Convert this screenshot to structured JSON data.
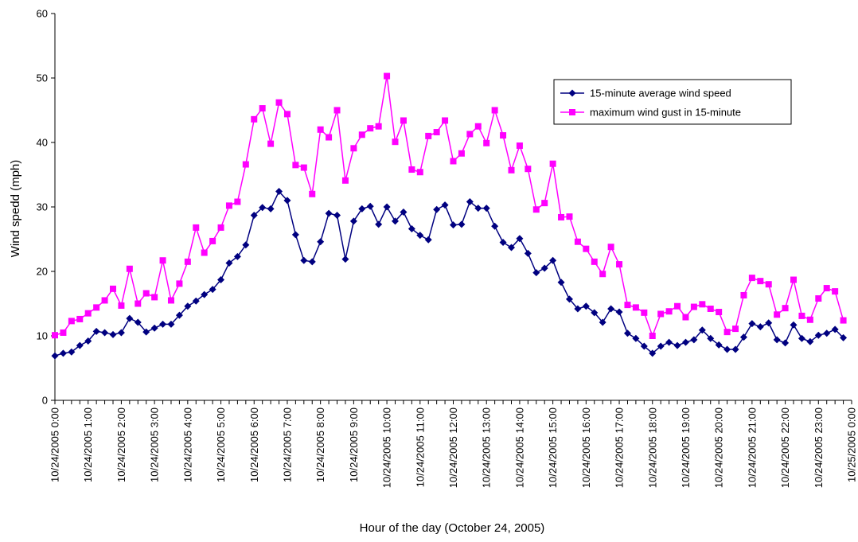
{
  "chart_data": {
    "type": "line",
    "title": "",
    "xlabel": "Hour of the day (October 24, 2005)",
    "ylabel": "Wind spedd (mph)",
    "ylim": [
      0,
      60
    ],
    "yticks": [
      0,
      10,
      20,
      30,
      40,
      50,
      60
    ],
    "x_tick_labels": [
      "10/24/2005 0:00",
      "10/24/2005 1:00",
      "10/24/2005 2:00",
      "10/24/2005 3:00",
      "10/24/2005 4:00",
      "10/24/2005 5:00",
      "10/24/2005 6:00",
      "10/24/2005 7:00",
      "10/24/2005 8:00",
      "10/24/2005 9:00",
      "10/24/2005 10:00",
      "10/24/2005 11:00",
      "10/24/2005 12:00",
      "10/24/2005 13:00",
      "10/24/2005 14:00",
      "10/24/2005 15:00",
      "10/24/2005 16:00",
      "10/24/2005 17:00",
      "10/24/2005 18:00",
      "10/24/2005 19:00",
      "10/24/2005 20:00",
      "10/24/2005 21:00",
      "10/24/2005 22:00",
      "10/24/2005 23:00",
      "10/25/2005 0:00"
    ],
    "grid": false,
    "legend_position": "top-right",
    "series": [
      {
        "name": "15-minute average wind speed",
        "color": "#000080",
        "marker": "diamond",
        "values": [
          6.9,
          7.3,
          7.5,
          8.5,
          9.2,
          10.7,
          10.5,
          10.2,
          10.5,
          12.7,
          12.1,
          10.6,
          11.2,
          11.8,
          11.8,
          13.2,
          14.6,
          15.4,
          16.4,
          17.2,
          18.7,
          21.3,
          22.3,
          24.1,
          28.7,
          29.9,
          29.7,
          32.4,
          31.0,
          25.7,
          21.7,
          21.5,
          24.6,
          29.0,
          28.7,
          21.9,
          27.8,
          29.7,
          30.1,
          27.3,
          30.0,
          27.8,
          29.2,
          26.6,
          25.6,
          24.9,
          29.6,
          30.3,
          27.2,
          27.3,
          30.8,
          29.8,
          29.8,
          27.0,
          24.5,
          23.7,
          25.1,
          22.8,
          19.8,
          20.5,
          21.7,
          18.3,
          15.7,
          14.2,
          14.6,
          13.6,
          12.1,
          14.2,
          13.7,
          10.4,
          9.6,
          8.4,
          7.3,
          8.4,
          9.0,
          8.5,
          9.0,
          9.4,
          10.9,
          9.6,
          8.6,
          7.9,
          7.9,
          9.8,
          11.9,
          11.4,
          12.0,
          9.4,
          8.9,
          11.7,
          9.6,
          9.1,
          10.1,
          10.4,
          11.0,
          9.7
        ]
      },
      {
        "name": "maximum wind gust in 15-minute",
        "color": "#FF00FF",
        "marker": "square",
        "values": [
          10.1,
          10.5,
          12.3,
          12.6,
          13.5,
          14.4,
          15.5,
          17.3,
          14.7,
          20.4,
          15.0,
          16.6,
          16.0,
          21.7,
          15.5,
          18.1,
          21.5,
          26.8,
          22.9,
          24.7,
          26.8,
          30.2,
          30.8,
          36.6,
          43.6,
          45.3,
          39.8,
          46.2,
          44.4,
          36.5,
          36.1,
          32.0,
          42.0,
          40.8,
          45.0,
          34.1,
          39.1,
          41.2,
          42.2,
          42.5,
          50.3,
          40.1,
          43.4,
          35.8,
          35.4,
          41.0,
          41.6,
          43.4,
          37.1,
          38.3,
          41.3,
          42.5,
          39.9,
          45.0,
          41.1,
          35.7,
          39.5,
          35.9,
          29.6,
          30.6,
          36.7,
          28.4,
          28.5,
          24.6,
          23.5,
          21.5,
          19.6,
          23.8,
          21.1,
          14.8,
          14.4,
          13.6,
          10.0,
          13.4,
          13.8,
          14.6,
          12.9,
          14.5,
          14.9,
          14.2,
          13.7,
          10.6,
          11.1,
          16.3,
          19.0,
          18.5,
          18.0,
          13.3,
          14.3,
          18.7,
          13.1,
          12.5,
          15.8,
          17.4,
          16.9,
          12.4
        ]
      }
    ]
  }
}
